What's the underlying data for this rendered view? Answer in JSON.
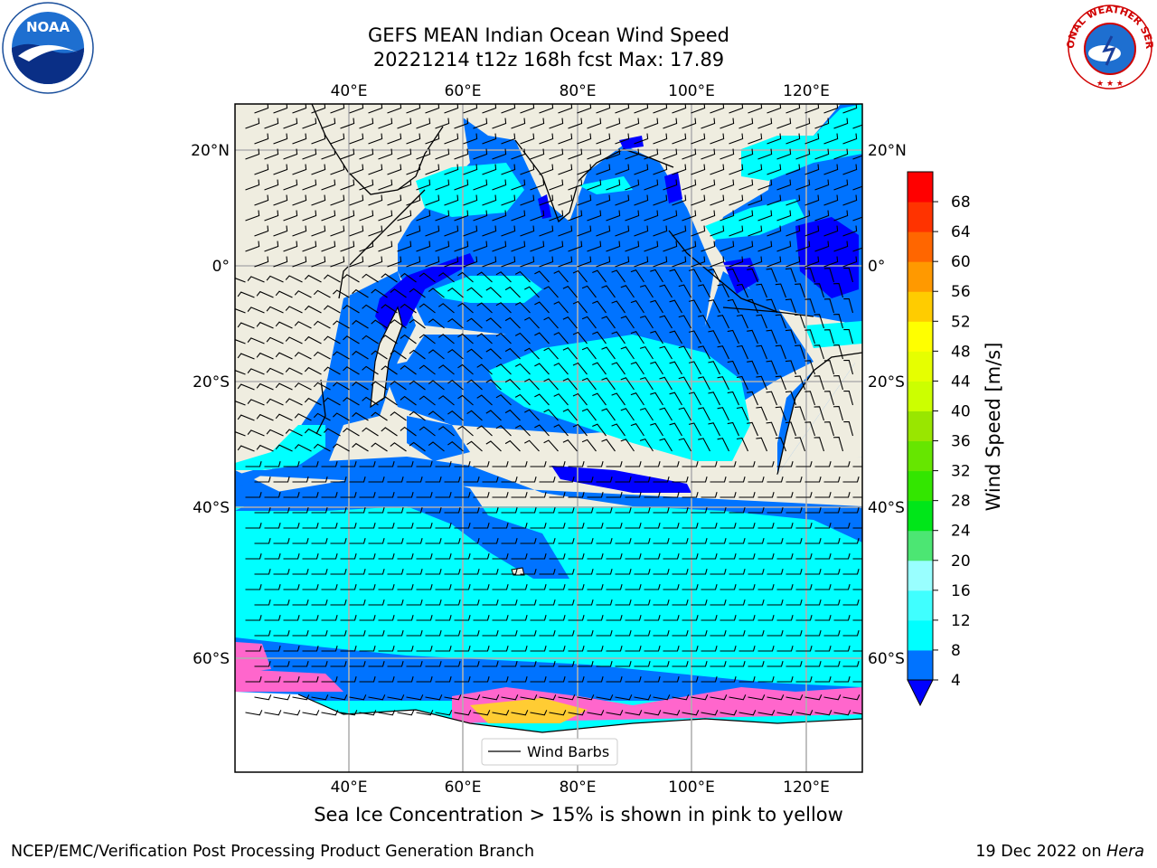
{
  "title": {
    "line1": "GEFS MEAN Indian Ocean Wind Speed",
    "line2": "20221214 t12z 168h fcst   Max: 17.89"
  },
  "map": {
    "lon_labels": [
      "40°E",
      "60°E",
      "80°E",
      "100°E",
      "120°E"
    ],
    "lat_labels": [
      "20°N",
      "0°",
      "20°S",
      "40°S",
      "60°S"
    ],
    "legend_label": "Wind Barbs"
  },
  "colorbar": {
    "label": "Wind Speed [m/s]",
    "ticks": [
      "4",
      "8",
      "12",
      "16",
      "20",
      "24",
      "28",
      "32",
      "36",
      "40",
      "44",
      "48",
      "52",
      "56",
      "60",
      "64",
      "68"
    ],
    "colors": [
      "#0073ff",
      "#00ffff",
      "#40ffff",
      "#99ffff",
      "#4ce673",
      "#00e619",
      "#33e600",
      "#66e600",
      "#99e600",
      "#ccff00",
      "#e6ff00",
      "#ffff00",
      "#ffcc00",
      "#ff9900",
      "#ff6600",
      "#ff3300",
      "#ff0000"
    ],
    "under_color": "#0000ff"
  },
  "caption": "Sea Ice Concentration > 15% is shown in pink to yellow",
  "footer": {
    "left": "NCEP/EMC/Verification Post Processing Product Generation Branch",
    "date": "19 Dec 2022 on ",
    "host": "Hera"
  },
  "logos": {
    "left": "NOAA",
    "right": "NATIONAL WEATHER SERVICE"
  }
}
